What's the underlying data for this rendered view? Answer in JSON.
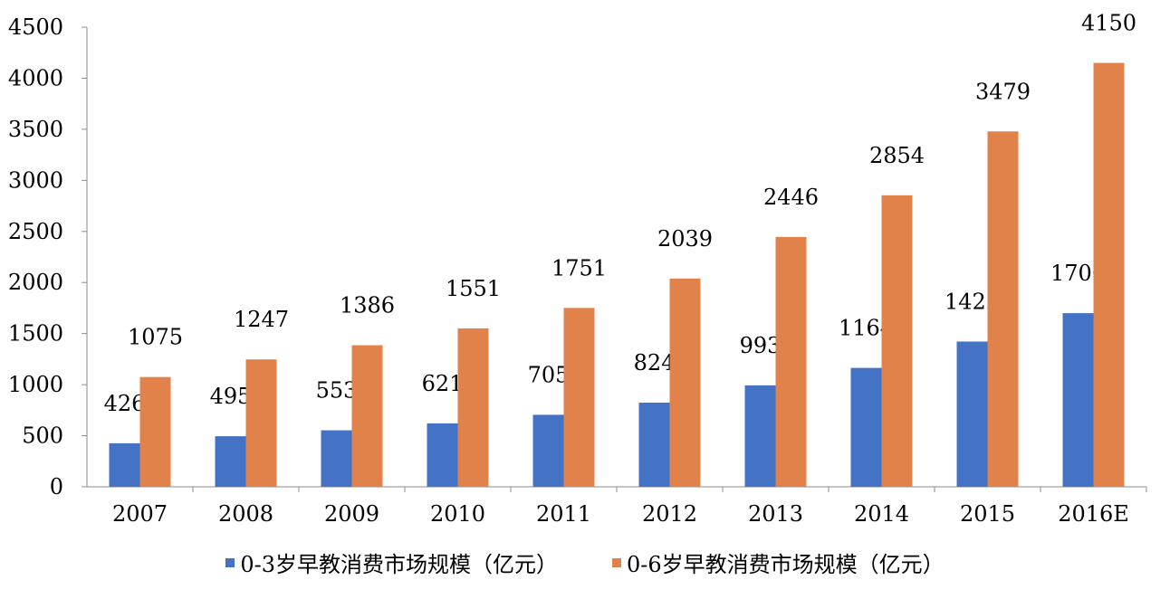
{
  "chart_data": {
    "type": "bar",
    "categories": [
      "2007",
      "2008",
      "2009",
      "2010",
      "2011",
      "2012",
      "2013",
      "2014",
      "2015",
      "2016E"
    ],
    "series": [
      {
        "name": "0-3岁早教消费市场规模（亿元）",
        "color": "#4472c4",
        "values": [
          426,
          495,
          553,
          621,
          705,
          824,
          993,
          1164,
          1422,
          1700
        ]
      },
      {
        "name": "0-6岁早教消费市场规模（亿元）",
        "color": "#e0824a",
        "values": [
          1075,
          1247,
          1386,
          1551,
          1751,
          2039,
          2446,
          2854,
          3479,
          4150
        ]
      }
    ],
    "ylim": [
      0,
      4500
    ],
    "yticks": [
      0,
      500,
      1000,
      1500,
      2000,
      2500,
      3000,
      3500,
      4000,
      4500
    ],
    "grid": false,
    "legend_position": "bottom",
    "title": "",
    "xlabel": "",
    "ylabel": ""
  }
}
